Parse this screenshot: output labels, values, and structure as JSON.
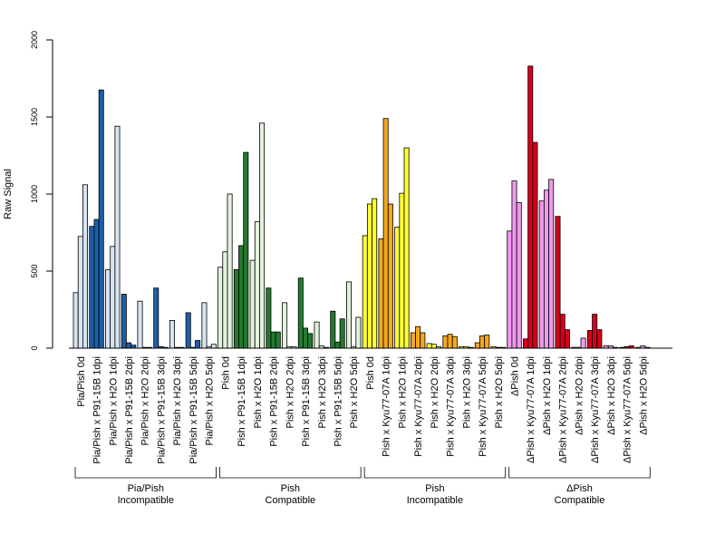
{
  "chart_data": {
    "type": "bar",
    "ylabel": "Raw Signal",
    "ylim": [
      0,
      2000
    ],
    "yticks": [
      0,
      500,
      1000,
      1500,
      2000
    ],
    "bars_per_category": 3,
    "categories": [
      "Pia/Pish 0d",
      "Pia/Pish x P91-15B 1dpi",
      "Pia/Pish x H2O 1dpi",
      "Pia/Pish x P91-15B 2dpi",
      "Pia/Pish x H2O 2dpi",
      "Pia/Pish x P91-15B 3dpi",
      "Pia/Pish x H2O 3dpi",
      "Pia/Pish x P91-15B 5dpi",
      "Pia/Pish x H2O 5dpi",
      "Pish 0d",
      "Pish x P91-15B 1dpi",
      "Pish x H2O 1dpi",
      "Pish x P91-15B 2dpi",
      "Pish x H2O 2dpi",
      "Pish x P91-15B 3dpi",
      "Pish x H2O 3dpi",
      "Pish x P91-15B 5dpi",
      "Pish x H2O 5dpi",
      "Pish 0d",
      "Pish x Kyu77-07A 1dpi",
      "Pish x H2O 1dpi",
      "Pish x Kyu77-07A 2dpi",
      "Pish x H2O 2dpi",
      "Pish x Kyu77-07A 3dpi",
      "Pish x H2O 3dpi",
      "Pish x Kyu77-07A 5dpi",
      "Pish x H2O 5dpi",
      "ΔPish 0d",
      "ΔPish x Kyu77-07A 1dpi",
      "ΔPish x H2O 1dpi",
      "ΔPish x Kyu77-07A 2dpi",
      "ΔPish x H2O 2dpi",
      "ΔPish x Kyu77-07A 3dpi",
      "ΔPish x H2O 3dpi",
      "ΔPish x Kyu77-07A 5dpi",
      "ΔPish x H2O 5dpi"
    ],
    "values": [
      [
        360,
        725,
        1060
      ],
      [
        790,
        835,
        1675
      ],
      [
        510,
        660,
        1440
      ],
      [
        350,
        35,
        20
      ],
      [
        305,
        5,
        5
      ],
      [
        390,
        10,
        5
      ],
      [
        180,
        5,
        5
      ],
      [
        230,
        5,
        50
      ],
      [
        295,
        10,
        25
      ],
      [
        525,
        625,
        1000
      ],
      [
        510,
        665,
        1270
      ],
      [
        570,
        820,
        1460
      ],
      [
        390,
        105,
        105
      ],
      [
        295,
        10,
        10
      ],
      [
        455,
        130,
        95
      ],
      [
        170,
        15,
        5
      ],
      [
        240,
        40,
        190
      ],
      [
        430,
        10,
        200
      ],
      [
        730,
        935,
        970
      ],
      [
        710,
        1490,
        935
      ],
      [
        785,
        1005,
        1300
      ],
      [
        100,
        140,
        100
      ],
      [
        30,
        25,
        10
      ],
      [
        80,
        90,
        75
      ],
      [
        10,
        10,
        5
      ],
      [
        35,
        80,
        85
      ],
      [
        10,
        5,
        5
      ],
      [
        760,
        1085,
        945
      ],
      [
        60,
        1830,
        1335
      ],
      [
        955,
        1025,
        1095
      ],
      [
        855,
        220,
        120
      ],
      [
        5,
        5,
        65
      ],
      [
        115,
        220,
        120
      ],
      [
        15,
        15,
        5
      ],
      [
        5,
        10,
        15
      ],
      [
        5,
        15,
        5
      ]
    ],
    "category_colors": [
      "#d6e4f2",
      "#1f5ea8",
      "#d6e4f2",
      "#1f5ea8",
      "#d6e4f2",
      "#1f5ea8",
      "#d6e4f2",
      "#1f5ea8",
      "#d6e4f2",
      "#e3f2de",
      "#237a30",
      "#e3f2de",
      "#237a30",
      "#e3f2de",
      "#237a30",
      "#e3f2de",
      "#237a30",
      "#e3f2de",
      "#ffff33",
      "#f5a81c",
      "#ffff33",
      "#f5a81c",
      "#ffff33",
      "#f5a81c",
      "#ffff33",
      "#f5a81c",
      "#ffff33",
      "#ef9aee",
      "#d7001b",
      "#ef9aee",
      "#d7001b",
      "#ef9aee",
      "#d7001b",
      "#ef9aee",
      "#d7001b",
      "#ef9aee"
    ],
    "groups": [
      {
        "line1": "Pia/Pish",
        "line2": "Incompatible",
        "start": 0,
        "end": 8
      },
      {
        "line1": "Pish",
        "line2": "Compatible",
        "start": 9,
        "end": 17
      },
      {
        "line1": "Pish",
        "line2": "Incompatible",
        "start": 18,
        "end": 26
      },
      {
        "line1": "ΔPish",
        "line2": "Compatible",
        "start": 27,
        "end": 35
      }
    ],
    "grid": false,
    "legend": "none"
  }
}
